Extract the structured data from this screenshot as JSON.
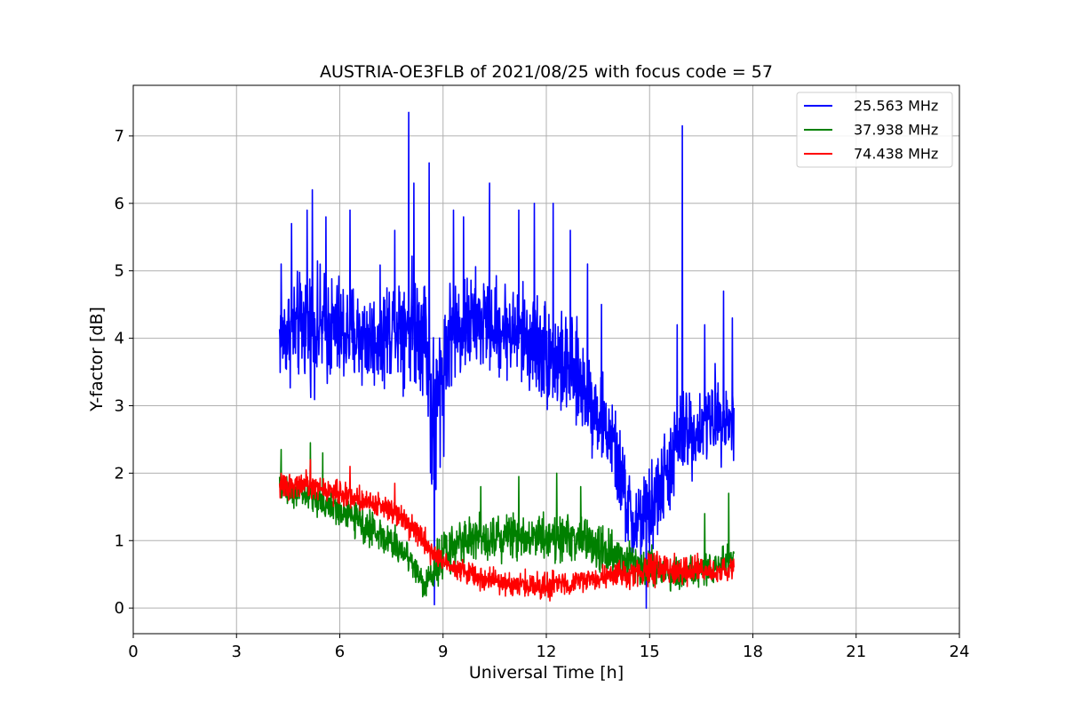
{
  "chart_data": {
    "type": "line",
    "title": "AUSTRIA-OE3FLB of 2021/08/25 with focus code = 57",
    "xlabel": "Universal Time [h]",
    "ylabel": "Y-factor [dB]",
    "xlim": [
      0,
      24
    ],
    "ylim": [
      -0.38,
      7.75
    ],
    "xticks": [
      0,
      3,
      6,
      9,
      12,
      15,
      18,
      21,
      24
    ],
    "xtick_labels": [
      "0",
      "3",
      "6",
      "9",
      "12",
      "15",
      "18",
      "21",
      "24"
    ],
    "yticks": [
      0,
      1,
      2,
      3,
      4,
      5,
      6,
      7
    ],
    "ytick_labels": [
      "0",
      "1",
      "2",
      "3",
      "4",
      "5",
      "6",
      "7"
    ],
    "grid": true,
    "legend": "top-right",
    "series": [
      {
        "name": "25.563 MHz",
        "color": "#0000ff",
        "envelope": {
          "x": [
            4.25,
            5.0,
            6.0,
            7.0,
            7.9,
            8.5,
            8.7,
            9.2,
            10.0,
            11.0,
            12.0,
            13.0,
            13.9,
            14.5,
            15.0,
            15.5,
            16.0,
            16.5,
            17.0,
            17.45
          ],
          "low": [
            3.05,
            3.0,
            2.9,
            2.95,
            3.0,
            2.8,
            0.4,
            3.0,
            3.2,
            3.1,
            2.6,
            2.3,
            1.6,
            0.2,
            0.4,
            1.0,
            1.6,
            1.9,
            2.0,
            1.9
          ],
          "high": [
            5.0,
            5.4,
            5.3,
            5.0,
            5.6,
            5.5,
            4.8,
            5.2,
            5.3,
            5.1,
            5.0,
            4.4,
            3.4,
            2.2,
            2.4,
            3.0,
            3.6,
            3.4,
            3.8,
            3.5
          ]
        },
        "spikes": [
          [
            4.3,
            5.1
          ],
          [
            4.6,
            5.7
          ],
          [
            5.05,
            5.9
          ],
          [
            5.2,
            6.2
          ],
          [
            5.6,
            5.8
          ],
          [
            6.3,
            5.9
          ],
          [
            7.6,
            5.6
          ],
          [
            8.0,
            7.35
          ],
          [
            8.15,
            6.3
          ],
          [
            8.6,
            6.6
          ],
          [
            9.3,
            5.9
          ],
          [
            9.6,
            5.8
          ],
          [
            10.35,
            6.3
          ],
          [
            11.2,
            5.9
          ],
          [
            11.65,
            6.0
          ],
          [
            12.2,
            6.0
          ],
          [
            12.7,
            5.6
          ],
          [
            13.2,
            5.1
          ],
          [
            13.6,
            4.5
          ],
          [
            15.8,
            4.2
          ],
          [
            15.95,
            7.15
          ],
          [
            16.6,
            4.2
          ],
          [
            17.15,
            4.7
          ],
          [
            17.4,
            4.3
          ]
        ],
        "dips": [
          [
            8.75,
            0.05
          ],
          [
            14.9,
            0.0
          ]
        ]
      },
      {
        "name": "37.938 MHz",
        "color": "#008000",
        "envelope": {
          "x": [
            4.25,
            5.0,
            6.0,
            7.0,
            8.0,
            8.5,
            8.8,
            9.5,
            10.0,
            11.0,
            12.0,
            13.0,
            14.0,
            15.0,
            16.0,
            17.0,
            17.45
          ],
          "low": [
            1.5,
            1.35,
            1.1,
            0.75,
            0.45,
            0.0,
            0.2,
            0.55,
            0.6,
            0.6,
            0.55,
            0.5,
            0.3,
            0.2,
            0.15,
            0.25,
            0.35
          ],
          "high": [
            2.1,
            2.0,
            1.8,
            1.55,
            1.1,
            0.6,
            1.2,
            1.45,
            1.5,
            1.55,
            1.6,
            1.55,
            1.2,
            1.0,
            0.8,
            1.0,
            1.1
          ]
        },
        "spikes": [
          [
            4.3,
            2.35
          ],
          [
            5.15,
            2.45
          ],
          [
            5.5,
            2.3
          ],
          [
            10.1,
            1.8
          ],
          [
            11.2,
            1.95
          ],
          [
            12.3,
            2.0
          ],
          [
            13.0,
            1.8
          ],
          [
            16.6,
            1.4
          ],
          [
            17.3,
            1.7
          ]
        ],
        "dips": []
      },
      {
        "name": "74.438 MHz",
        "color": "#ff0000",
        "envelope": {
          "x": [
            4.25,
            5.0,
            6.0,
            7.0,
            7.7,
            8.3,
            8.8,
            9.5,
            10.0,
            11.0,
            12.0,
            13.0,
            14.0,
            15.0,
            16.0,
            17.0,
            17.45
          ],
          "low": [
            1.55,
            1.55,
            1.45,
            1.3,
            1.15,
            0.8,
            0.5,
            0.35,
            0.2,
            0.1,
            0.05,
            0.15,
            0.2,
            0.25,
            0.25,
            0.25,
            0.3
          ],
          "high": [
            2.05,
            2.1,
            1.95,
            1.8,
            1.7,
            1.4,
            1.0,
            0.8,
            0.7,
            0.6,
            0.6,
            0.65,
            0.75,
            0.9,
            0.85,
            0.8,
            0.85
          ]
        },
        "spikes": [
          [
            4.3,
            2.0
          ],
          [
            5.15,
            2.2
          ],
          [
            6.3,
            2.1
          ],
          [
            7.6,
            1.85
          ]
        ],
        "dips": []
      }
    ]
  }
}
